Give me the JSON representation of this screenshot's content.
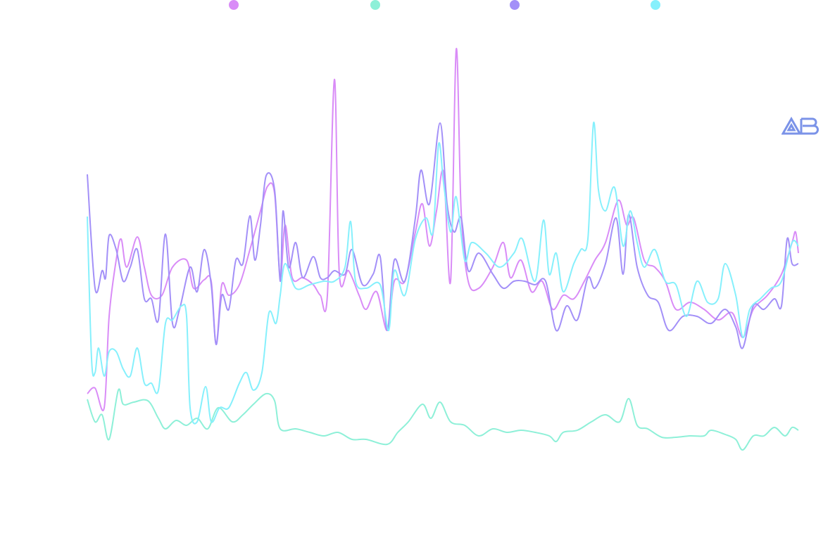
{
  "chart_data": {
    "type": "line",
    "title": "",
    "xlabel": "",
    "ylabel": "",
    "xlim": [
      0,
      1010
    ],
    "ylim": [
      0,
      66
    ],
    "grid": false,
    "legend_placement": "top",
    "series": [
      {
        "name": "",
        "color": "#d98cf7",
        "points": [
          [
            0,
            14
          ],
          [
            11,
            14.8
          ],
          [
            24,
            12
          ],
          [
            31,
            25
          ],
          [
            41,
            33
          ],
          [
            48,
            36
          ],
          [
            56,
            32
          ],
          [
            71,
            36.3
          ],
          [
            81,
            32
          ],
          [
            91,
            28
          ],
          [
            106,
            28
          ],
          [
            121,
            32
          ],
          [
            141,
            33
          ],
          [
            151,
            29
          ],
          [
            166,
            30.2
          ],
          [
            176,
            30
          ],
          [
            183,
            21
          ],
          [
            191,
            29.5
          ],
          [
            201,
            28
          ],
          [
            216,
            29.5
          ],
          [
            231,
            34.5
          ],
          [
            246,
            40
          ],
          [
            256,
            43.5
          ],
          [
            266,
            42.5
          ],
          [
            274,
            30.5
          ],
          [
            281,
            38
          ],
          [
            291,
            30.5
          ],
          [
            306,
            30.5
          ],
          [
            321,
            29.5
          ],
          [
            331,
            28
          ],
          [
            341,
            28
          ],
          [
            351,
            58.7
          ],
          [
            358,
            31
          ],
          [
            371,
            31.5
          ],
          [
            386,
            28
          ],
          [
            396,
            26
          ],
          [
            411,
            28.5
          ],
          [
            426,
            23
          ],
          [
            436,
            30
          ],
          [
            451,
            30
          ],
          [
            466,
            37
          ],
          [
            476,
            41
          ],
          [
            486,
            35
          ],
          [
            496,
            40
          ],
          [
            506,
            45.5
          ],
          [
            516,
            30
          ],
          [
            524,
            63
          ],
          [
            531,
            40
          ],
          [
            541,
            30
          ],
          [
            556,
            29
          ],
          [
            576,
            32
          ],
          [
            591,
            35.5
          ],
          [
            601,
            30.5
          ],
          [
            616,
            33
          ],
          [
            631,
            28.5
          ],
          [
            646,
            30
          ],
          [
            661,
            26
          ],
          [
            676,
            28
          ],
          [
            691,
            27.5
          ],
          [
            706,
            30
          ],
          [
            721,
            33
          ],
          [
            736,
            35.5
          ],
          [
            754,
            41.5
          ],
          [
            766,
            38
          ],
          [
            776,
            39
          ],
          [
            791,
            33
          ],
          [
            806,
            32
          ],
          [
            821,
            30
          ],
          [
            836,
            26
          ],
          [
            856,
            27
          ],
          [
            876,
            26
          ],
          [
            896,
            24.5
          ],
          [
            916,
            25.5
          ],
          [
            931,
            22
          ],
          [
            946,
            26
          ],
          [
            966,
            28
          ],
          [
            986,
            31
          ],
          [
            1001,
            35.5
          ],
          [
            1006,
            37
          ],
          [
            1010,
            34
          ]
        ]
      },
      {
        "name": "",
        "color": "#8ef0d8",
        "points": [
          [
            0,
            13.2
          ],
          [
            11,
            10
          ],
          [
            21,
            11
          ],
          [
            31,
            7.5
          ],
          [
            44,
            14.5
          ],
          [
            51,
            12.5
          ],
          [
            66,
            12.8
          ],
          [
            86,
            13
          ],
          [
            101,
            10.5
          ],
          [
            111,
            9
          ],
          [
            126,
            10.2
          ],
          [
            141,
            9.5
          ],
          [
            156,
            10.5
          ],
          [
            171,
            9
          ],
          [
            186,
            12
          ],
          [
            206,
            10
          ],
          [
            221,
            11
          ],
          [
            236,
            12.5
          ],
          [
            254,
            14
          ],
          [
            266,
            13
          ],
          [
            274,
            9
          ],
          [
            296,
            9
          ],
          [
            316,
            8.5
          ],
          [
            336,
            8
          ],
          [
            356,
            8.5
          ],
          [
            376,
            7.5
          ],
          [
            396,
            7.5
          ],
          [
            426,
            6.8
          ],
          [
            441,
            8.5
          ],
          [
            456,
            10
          ],
          [
            476,
            12.5
          ],
          [
            488,
            10.5
          ],
          [
            501,
            12.8
          ],
          [
            516,
            10
          ],
          [
            536,
            9.5
          ],
          [
            556,
            8
          ],
          [
            576,
            9
          ],
          [
            596,
            8.5
          ],
          [
            616,
            8.8
          ],
          [
            636,
            8.5
          ],
          [
            656,
            8
          ],
          [
            666,
            7.2
          ],
          [
            676,
            8.5
          ],
          [
            696,
            8.8
          ],
          [
            716,
            10
          ],
          [
            736,
            11
          ],
          [
            756,
            10
          ],
          [
            769,
            13.3
          ],
          [
            781,
            9.5
          ],
          [
            796,
            9
          ],
          [
            816,
            7.8
          ],
          [
            836,
            7.8
          ],
          [
            856,
            8
          ],
          [
            876,
            8
          ],
          [
            886,
            8.8
          ],
          [
            906,
            8.2
          ],
          [
            921,
            7.5
          ],
          [
            931,
            6
          ],
          [
            946,
            8
          ],
          [
            961,
            8
          ],
          [
            976,
            9.2
          ],
          [
            991,
            8
          ],
          [
            1001,
            9.2
          ],
          [
            1010,
            8.8
          ]
        ]
      },
      {
        "name": "",
        "color": "#a390f8",
        "points": [
          [
            0,
            45.2
          ],
          [
            11,
            29
          ],
          [
            21,
            31.5
          ],
          [
            26,
            30.5
          ],
          [
            31,
            36.5
          ],
          [
            41,
            34.5
          ],
          [
            51,
            30
          ],
          [
            61,
            32
          ],
          [
            71,
            34.5
          ],
          [
            81,
            27.5
          ],
          [
            91,
            27.5
          ],
          [
            101,
            24.5
          ],
          [
            111,
            36.7
          ],
          [
            121,
            24
          ],
          [
            131,
            26
          ],
          [
            146,
            32
          ],
          [
            156,
            28.5
          ],
          [
            166,
            34.5
          ],
          [
            176,
            29.5
          ],
          [
            183,
            21
          ],
          [
            191,
            28
          ],
          [
            201,
            26
          ],
          [
            211,
            33
          ],
          [
            221,
            32.5
          ],
          [
            231,
            39.3
          ],
          [
            238,
            33
          ],
          [
            246,
            38
          ],
          [
            254,
            45
          ],
          [
            266,
            43
          ],
          [
            274,
            30
          ],
          [
            278,
            40
          ],
          [
            286,
            32
          ],
          [
            296,
            35.5
          ],
          [
            306,
            30.5
          ],
          [
            321,
            33.5
          ],
          [
            331,
            30.5
          ],
          [
            341,
            30.5
          ],
          [
            351,
            31.5
          ],
          [
            366,
            31
          ],
          [
            376,
            34.5
          ],
          [
            391,
            29.5
          ],
          [
            406,
            31
          ],
          [
            416,
            33.5
          ],
          [
            426,
            23
          ],
          [
            436,
            33
          ],
          [
            451,
            30
          ],
          [
            466,
            39
          ],
          [
            474,
            45.8
          ],
          [
            486,
            41
          ],
          [
            501,
            52.5
          ],
          [
            511,
            41
          ],
          [
            521,
            37
          ],
          [
            531,
            39
          ],
          [
            541,
            31.5
          ],
          [
            556,
            34
          ],
          [
            576,
            31
          ],
          [
            591,
            29
          ],
          [
            606,
            30
          ],
          [
            621,
            30
          ],
          [
            636,
            29.5
          ],
          [
            651,
            30
          ],
          [
            666,
            23
          ],
          [
            681,
            26.5
          ],
          [
            696,
            24.5
          ],
          [
            711,
            30.5
          ],
          [
            721,
            29
          ],
          [
            736,
            32.5
          ],
          [
            751,
            39
          ],
          [
            761,
            31
          ],
          [
            769,
            39.5
          ],
          [
            781,
            32
          ],
          [
            796,
            28
          ],
          [
            811,
            27
          ],
          [
            826,
            23
          ],
          [
            846,
            25
          ],
          [
            866,
            25
          ],
          [
            886,
            24
          ],
          [
            906,
            26
          ],
          [
            921,
            23.5
          ],
          [
            931,
            20.5
          ],
          [
            946,
            26.5
          ],
          [
            961,
            26
          ],
          [
            976,
            27.5
          ],
          [
            986,
            26.5
          ],
          [
            994,
            36
          ],
          [
            1001,
            32.5
          ],
          [
            1010,
            32.5
          ]
        ]
      },
      {
        "name": "",
        "color": "#86f0fc",
        "points": [
          [
            0,
            39.2
          ],
          [
            6,
            19
          ],
          [
            11,
            17
          ],
          [
            16,
            20.5
          ],
          [
            24,
            16.5
          ],
          [
            31,
            20
          ],
          [
            41,
            20
          ],
          [
            51,
            17.5
          ],
          [
            61,
            16.5
          ],
          [
            71,
            20.5
          ],
          [
            81,
            15.5
          ],
          [
            91,
            15.5
          ],
          [
            101,
            14.5
          ],
          [
            111,
            24
          ],
          [
            121,
            24.5
          ],
          [
            134,
            26.5
          ],
          [
            141,
            25
          ],
          [
            146,
            12
          ],
          [
            156,
            10
          ],
          [
            168,
            15
          ],
          [
            176,
            10
          ],
          [
            188,
            12
          ],
          [
            201,
            12
          ],
          [
            216,
            15.5
          ],
          [
            226,
            17
          ],
          [
            236,
            14.5
          ],
          [
            248,
            17
          ],
          [
            258,
            25.5
          ],
          [
            268,
            24
          ],
          [
            274,
            28
          ],
          [
            281,
            32.5
          ],
          [
            296,
            29
          ],
          [
            316,
            29.5
          ],
          [
            336,
            30
          ],
          [
            351,
            30
          ],
          [
            366,
            32
          ],
          [
            374,
            38.5
          ],
          [
            381,
            30
          ],
          [
            396,
            29
          ],
          [
            416,
            29.5
          ],
          [
            428,
            23
          ],
          [
            436,
            31.5
          ],
          [
            451,
            28
          ],
          [
            466,
            36
          ],
          [
            481,
            39
          ],
          [
            491,
            37
          ],
          [
            499,
            49.5
          ],
          [
            506,
            44
          ],
          [
            516,
            37
          ],
          [
            524,
            42
          ],
          [
            536,
            33
          ],
          [
            546,
            35.5
          ],
          [
            566,
            34
          ],
          [
            586,
            32
          ],
          [
            606,
            34
          ],
          [
            618,
            36
          ],
          [
            636,
            30
          ],
          [
            648,
            38.7
          ],
          [
            656,
            31
          ],
          [
            666,
            34
          ],
          [
            676,
            28.5
          ],
          [
            691,
            32.5
          ],
          [
            701,
            34.5
          ],
          [
            711,
            36
          ],
          [
            719,
            52.5
          ],
          [
            726,
            43
          ],
          [
            736,
            40
          ],
          [
            749,
            43.3
          ],
          [
            761,
            35
          ],
          [
            771,
            40
          ],
          [
            781,
            35.5
          ],
          [
            791,
            32
          ],
          [
            806,
            34.5
          ],
          [
            821,
            30
          ],
          [
            836,
            29.5
          ],
          [
            851,
            25
          ],
          [
            866,
            30
          ],
          [
            881,
            27
          ],
          [
            896,
            27.5
          ],
          [
            906,
            32.5
          ],
          [
            921,
            28
          ],
          [
            931,
            22
          ],
          [
            941,
            26
          ],
          [
            956,
            27.5
          ],
          [
            971,
            29
          ],
          [
            986,
            30
          ],
          [
            1001,
            35.5
          ],
          [
            1010,
            35
          ]
        ]
      }
    ]
  },
  "logo": {
    "text": "AB",
    "color": "#7b93e8"
  }
}
